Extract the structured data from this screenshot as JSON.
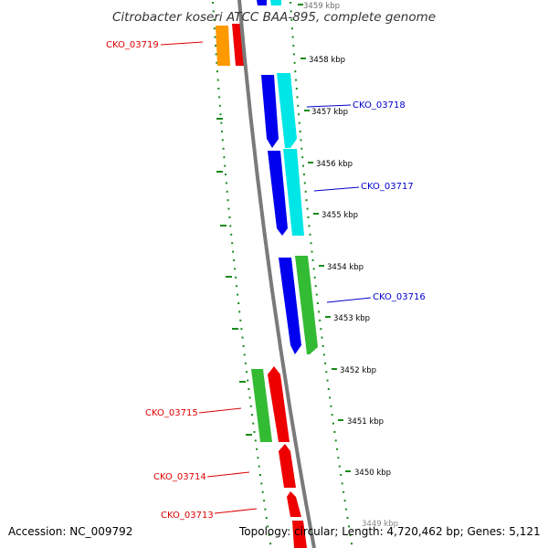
{
  "map": {
    "title": "Citrobacter koseri ATCC BAA-895, complete genome",
    "accession": "Accession: NC_009792",
    "summary": "Topology: circular; Length: 4,720,462 bp; Genes: 5,121",
    "colors": {
      "backbone": "#7a7a7a",
      "tick_minor": "#1a8a1a",
      "forward_label": "#0000cc",
      "reverse_label": "#dd0000",
      "cds_blue": "#0000ee",
      "cds_cyan": "#00e6e6",
      "cds_green": "#33bb33",
      "cds_red": "#ee0000",
      "cds_orange": "#ff9900"
    },
    "ticks": [
      {
        "label": "3459 kbp"
      },
      {
        "label": "3458 kbp"
      },
      {
        "label": "3457 kbp"
      },
      {
        "label": "3456 kbp"
      },
      {
        "label": "3455 kbp"
      },
      {
        "label": "3454 kbp"
      },
      {
        "label": "3453 kbp"
      },
      {
        "label": "3452 kbp"
      },
      {
        "label": "3451 kbp"
      },
      {
        "label": "3450 kbp"
      },
      {
        "label": "3449 kbp"
      }
    ],
    "gene_labels": [
      {
        "text": "CKO_03719",
        "strand": "reverse"
      },
      {
        "text": "CKO_03718",
        "strand": "forward"
      },
      {
        "text": "CKO_03717",
        "strand": "forward"
      },
      {
        "text": "CKO_03716",
        "strand": "forward"
      },
      {
        "text": "CKO_03715",
        "strand": "reverse"
      },
      {
        "text": "CKO_03714",
        "strand": "reverse"
      },
      {
        "text": "CKO_03713",
        "strand": "reverse"
      }
    ]
  }
}
